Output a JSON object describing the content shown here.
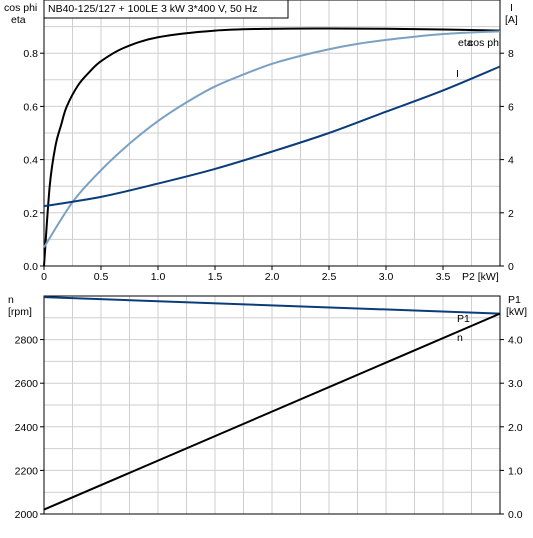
{
  "colors": {
    "cos_phi": "#7aa1c4",
    "eta": "#000000",
    "I": "#0b3c7a",
    "n": "#0b3c7a",
    "P1": "#000000",
    "grid": "#cfcfcf"
  },
  "chart_data": [
    {
      "type": "line",
      "title": "NB40-125/127 + 100LE   3 kW   3*400 V, 50 Hz",
      "xlabel": "P2 [kW]",
      "ylabel_left": [
        "cos phi",
        "eta"
      ],
      "ylabel_right": [
        "I",
        "[A]"
      ],
      "xlim": [
        0,
        4.0
      ],
      "ylim_left": [
        0,
        1.0
      ],
      "ylim_right": [
        0,
        10
      ],
      "x_ticks": [
        "0",
        "0.5",
        "1.0",
        "1.5",
        "2.0",
        "2.5",
        "3.0",
        "3.5"
      ],
      "y_ticks_left": [
        "0.0",
        "0.2",
        "0.4",
        "0.6",
        "0.8"
      ],
      "y_ticks_right": [
        "0",
        "2",
        "4",
        "6",
        "8"
      ],
      "grid": true,
      "series": [
        {
          "name": "eta",
          "axis": "left",
          "color_key": "eta",
          "x": [
            0,
            0.05,
            0.1,
            0.15,
            0.2,
            0.3,
            0.4,
            0.5,
            0.7,
            1.0,
            1.5,
            2.0,
            2.5,
            3.0,
            3.5,
            4.0
          ],
          "y": [
            0,
            0.3,
            0.45,
            0.53,
            0.6,
            0.68,
            0.73,
            0.77,
            0.82,
            0.86,
            0.885,
            0.892,
            0.893,
            0.892,
            0.889,
            0.885
          ]
        },
        {
          "name": "cos phi",
          "axis": "left",
          "color_key": "cos_phi",
          "x": [
            0,
            0.25,
            0.5,
            0.75,
            1.0,
            1.25,
            1.5,
            1.75,
            2.0,
            2.25,
            2.5,
            2.75,
            3.0,
            3.25,
            3.5,
            3.75,
            4.0
          ],
          "y": [
            0.07,
            0.24,
            0.36,
            0.46,
            0.545,
            0.615,
            0.675,
            0.72,
            0.76,
            0.79,
            0.815,
            0.835,
            0.85,
            0.862,
            0.872,
            0.878,
            0.882
          ]
        },
        {
          "name": "I",
          "axis": "right",
          "color_key": "I",
          "x": [
            0,
            0.5,
            1.0,
            1.5,
            2.0,
            2.5,
            3.0,
            3.5,
            4.0
          ],
          "y": [
            2.25,
            2.6,
            3.1,
            3.65,
            4.3,
            5.0,
            5.8,
            6.6,
            7.5
          ]
        }
      ],
      "series_labels": [
        "eta",
        "cos phi",
        "I"
      ]
    },
    {
      "type": "line",
      "xlim": [
        0,
        4.0
      ],
      "ylabel_left": [
        "n",
        "[rpm]"
      ],
      "ylabel_right": [
        "P1",
        "[kW]"
      ],
      "ylim_left": [
        2000,
        2990
      ],
      "ylim_right": [
        0,
        4.95
      ],
      "y_ticks_left": [
        "2000",
        "2200",
        "2400",
        "2600",
        "2800"
      ],
      "y_ticks_right": [
        "0.0",
        "1.0",
        "2.0",
        "3.0",
        "4.0"
      ],
      "grid": true,
      "series": [
        {
          "name": "n",
          "axis": "left",
          "color_key": "n",
          "x": [
            0,
            4.0
          ],
          "y": [
            2985,
            2910
          ]
        },
        {
          "name": "P1",
          "axis": "right",
          "color_key": "P1",
          "x": [
            0,
            4.0
          ],
          "y": [
            0.1,
            4.55
          ]
        }
      ],
      "series_labels": [
        "P1",
        "n"
      ]
    }
  ]
}
